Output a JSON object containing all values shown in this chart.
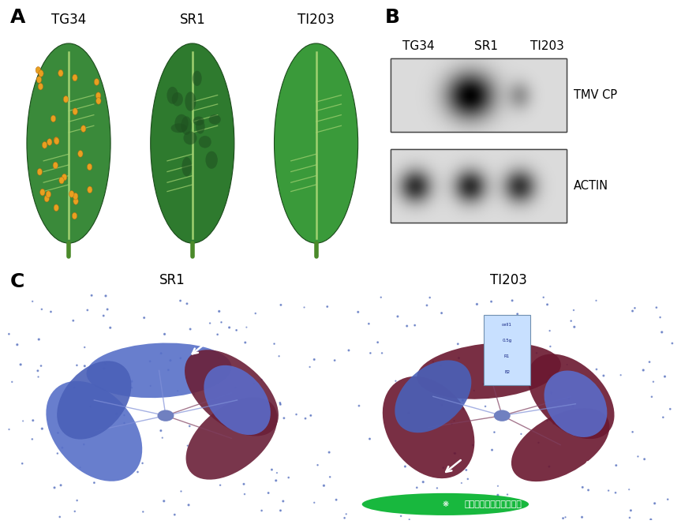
{
  "bg_color": "#ffffff",
  "panel_label_fontsize": 18,
  "panel_label_weight": "bold",
  "label_fontsize": 12,
  "panel_A": {
    "label": "A",
    "samples": [
      "TG34",
      "SR1",
      "TI203"
    ],
    "leaf_colors": [
      "#3a8a3a",
      "#2e7a2e",
      "#3a9a3a"
    ],
    "spot_color": "#e8a020"
  },
  "panel_B": {
    "label": "B",
    "samples": [
      "TG34",
      "SR1",
      "TI203"
    ],
    "band_labels": [
      "TMV CP",
      "ACTIN"
    ]
  },
  "panel_C": {
    "label": "C",
    "samples": [
      "SR1",
      "TI203"
    ]
  },
  "watermark": "全宇宙植物科学前沿报告"
}
